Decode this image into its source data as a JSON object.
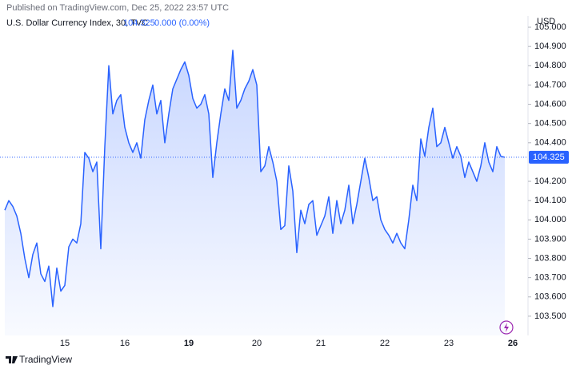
{
  "chart_data": {
    "type": "area",
    "published": "Published on TradingView.com, Dec 25, 2022 23:57 UTC",
    "title": "U.S. Dollar Currency Index, 30, TVC",
    "last_price": 104.325,
    "change": "0.000 (0.00%)",
    "currency": "USD",
    "brand": "TradingView",
    "color": "#2962ff",
    "grid": false,
    "ylim": [
      103.4,
      105.05
    ],
    "yticks": [
      {
        "value": 103.5,
        "label": "103.500"
      },
      {
        "value": 103.6,
        "label": "103.600"
      },
      {
        "value": 103.7,
        "label": "103.700"
      },
      {
        "value": 103.8,
        "label": "103.800"
      },
      {
        "value": 103.9,
        "label": "103.900"
      },
      {
        "value": 104,
        "label": "104.000"
      },
      {
        "value": 104.1,
        "label": "104.100"
      },
      {
        "value": 104.2,
        "label": "104.200"
      },
      {
        "value": 104.4,
        "label": "104.400"
      },
      {
        "value": 104.5,
        "label": "104.500"
      },
      {
        "value": 104.6,
        "label": "104.600"
      },
      {
        "value": 104.7,
        "label": "104.700"
      },
      {
        "value": 104.8,
        "label": "104.800"
      },
      {
        "value": 104.9,
        "label": "104.900"
      },
      {
        "value": 105,
        "label": "105.000"
      }
    ],
    "categories": [
      null,
      null,
      null,
      null,
      null,
      null,
      null,
      null,
      null,
      null,
      null,
      null,
      null,
      null,
      null,
      "15",
      null,
      null,
      null,
      null,
      null,
      null,
      null,
      null,
      null,
      null,
      null,
      null,
      null,
      null,
      "16",
      null,
      null,
      null,
      null,
      null,
      null,
      null,
      null,
      null,
      null,
      null,
      null,
      null,
      null,
      null,
      "19",
      null,
      null,
      null,
      null,
      null,
      null,
      null,
      null,
      null,
      null,
      null,
      null,
      null,
      null,
      null,
      null,
      "20",
      null,
      null,
      null,
      null,
      null,
      null,
      null,
      null,
      null,
      null,
      null,
      null,
      null,
      null,
      null,
      "21",
      null,
      null,
      null,
      null,
      null,
      null,
      null,
      null,
      null,
      null,
      null,
      null,
      null,
      null,
      null,
      "22",
      null,
      null,
      null,
      null,
      null,
      null,
      null,
      null,
      null,
      null,
      null,
      null,
      null,
      null,
      null,
      "23",
      null,
      null,
      null,
      null,
      null,
      null,
      null,
      null,
      null,
      null,
      null,
      null,
      null,
      null,
      null,
      "26"
    ],
    "values": [
      104.05,
      104.1,
      104.07,
      104.02,
      103.93,
      103.8,
      103.7,
      103.82,
      103.88,
      103.72,
      103.68,
      103.76,
      103.55,
      103.75,
      103.63,
      103.66,
      103.86,
      103.9,
      103.88,
      103.98,
      104.35,
      104.32,
      104.25,
      104.3,
      103.85,
      104.38,
      104.8,
      104.55,
      104.62,
      104.65,
      104.48,
      104.4,
      104.35,
      104.4,
      104.32,
      104.52,
      104.62,
      104.7,
      104.55,
      104.62,
      104.4,
      104.55,
      104.68,
      104.73,
      104.78,
      104.82,
      104.75,
      104.63,
      104.58,
      104.6,
      104.65,
      104.55,
      104.22,
      104.4,
      104.55,
      104.68,
      104.62,
      104.88,
      104.58,
      104.62,
      104.68,
      104.72,
      104.78,
      104.7,
      104.25,
      104.28,
      104.38,
      104.3,
      104.2,
      103.95,
      103.97,
      104.28,
      104.15,
      103.83,
      104.05,
      103.98,
      104.08,
      104.1,
      103.92,
      103.97,
      104.02,
      104.12,
      103.93,
      104.1,
      103.98,
      104.05,
      104.18,
      103.98,
      104.08,
      104.2,
      104.32,
      104.22,
      104.1,
      104.12,
      104,
      103.95,
      103.92,
      103.88,
      103.93,
      103.88,
      103.85,
      104,
      104.18,
      104.1,
      104.42,
      104.33,
      104.48,
      104.58,
      104.38,
      104.4,
      104.48,
      104.4,
      104.32,
      104.38,
      104.33,
      104.22,
      104.3,
      104.25,
      104.2,
      104.28,
      104.4,
      104.3,
      104.25,
      104.38,
      104.33,
      104.325,
      null,
      null
    ]
  }
}
